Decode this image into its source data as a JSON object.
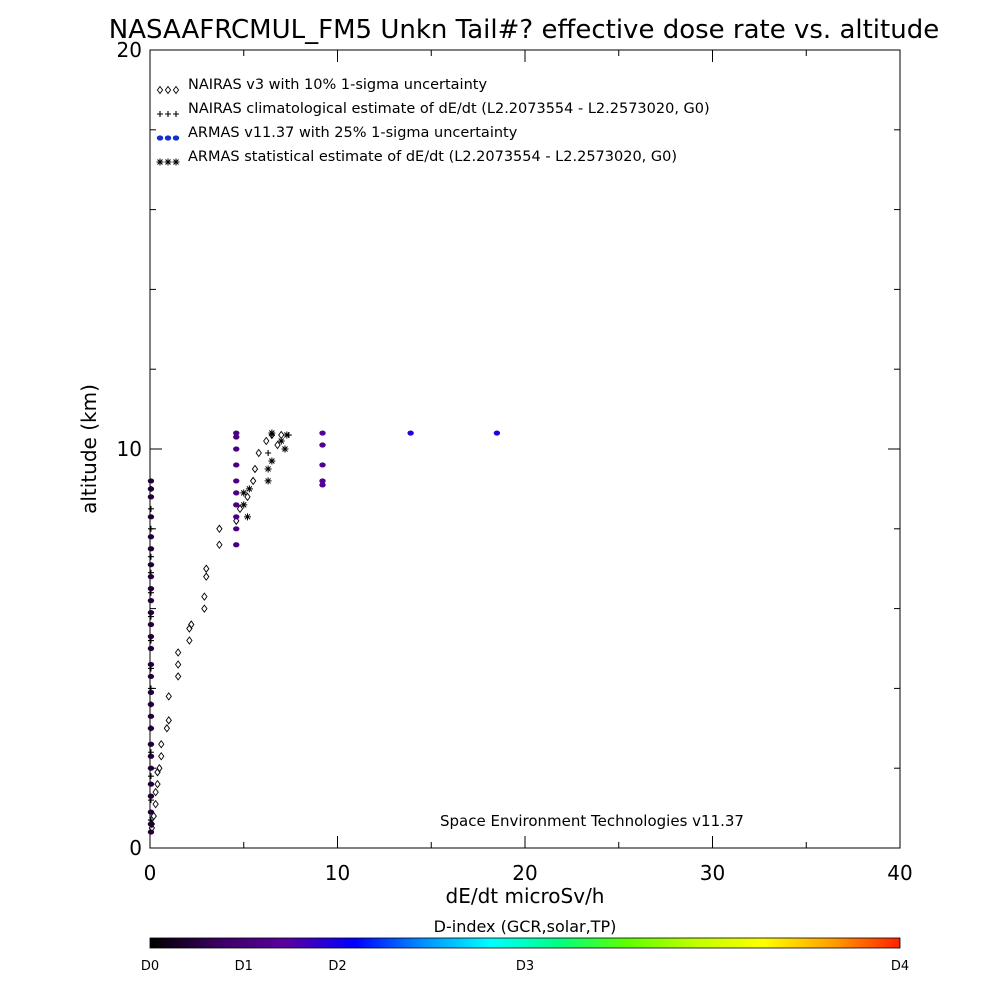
{
  "chart_data": {
    "type": "scatter",
    "title": "NASAAFRCMUL_FM5 Unkn Tail#? effective dose rate vs. altitude",
    "xlabel": "dE/dt microSv/h",
    "ylabel": "altitude (km)",
    "xlim": [
      0,
      40
    ],
    "ylim": [
      0,
      20
    ],
    "x_ticks": [
      "0",
      "10",
      "20",
      "30",
      "40"
    ],
    "y_ticks": [
      "0",
      "10",
      "20"
    ],
    "credit": "Space Environment Technologies v11.37",
    "legend_position": "top-left",
    "legend": [
      {
        "symbol": "diamond",
        "symbol_text": "◇◇◇",
        "label": "NAIRAS v3 with 10% 1-sigma uncertainty"
      },
      {
        "symbol": "plus",
        "symbol_text": "+++",
        "label": "NAIRAS climatological estimate of dE/dt (L2.2073554 - L2.2573020, G0)"
      },
      {
        "symbol": "dot",
        "symbol_text": "●●●",
        "label": "ARMAS v11.37 with 25% 1-sigma uncertainty"
      },
      {
        "symbol": "asterisk",
        "symbol_text": "***",
        "label": "ARMAS statistical estimate of dE/dt (L2.2073554 - L2.2573020, G0)"
      }
    ],
    "colorbar": {
      "title": "D-index (GCR,solar,TP)",
      "labels": [
        "D0",
        "D1",
        "D2",
        "D3",
        "D4"
      ],
      "label_positions": [
        0,
        0.125,
        0.25,
        0.5,
        1.0
      ],
      "stops": [
        "#000000",
        "#3a0060",
        "#5a00a0",
        "#0000ff",
        "#0090ff",
        "#00ffff",
        "#00ff80",
        "#60ff00",
        "#c0ff00",
        "#ffff00",
        "#ffa000",
        "#ff2000"
      ]
    },
    "series": [
      {
        "name": "NAIRAS v3 with 10% 1-sigma uncertainty",
        "marker": "diamond",
        "color": "#000000",
        "points": [
          [
            0.1,
            0.5
          ],
          [
            0.1,
            0.6
          ],
          [
            0.2,
            0.8
          ],
          [
            0.3,
            1.1
          ],
          [
            0.3,
            1.4
          ],
          [
            0.4,
            1.6
          ],
          [
            0.4,
            1.9
          ],
          [
            0.5,
            2.0
          ],
          [
            0.6,
            2.3
          ],
          [
            0.6,
            2.6
          ],
          [
            0.9,
            3.0
          ],
          [
            1.0,
            3.2
          ],
          [
            1.0,
            3.8
          ],
          [
            1.5,
            4.3
          ],
          [
            1.5,
            4.6
          ],
          [
            1.5,
            4.9
          ],
          [
            2.1,
            5.2
          ],
          [
            2.1,
            5.5
          ],
          [
            2.2,
            5.6
          ],
          [
            2.9,
            6.0
          ],
          [
            2.9,
            6.3
          ],
          [
            3.0,
            6.8
          ],
          [
            3.0,
            7.0
          ],
          [
            3.7,
            7.6
          ],
          [
            3.7,
            8.0
          ],
          [
            4.6,
            8.2
          ],
          [
            4.8,
            8.5
          ],
          [
            5.2,
            8.8
          ],
          [
            5.5,
            9.2
          ],
          [
            5.6,
            9.5
          ],
          [
            5.8,
            9.9
          ],
          [
            6.2,
            10.2
          ],
          [
            6.5,
            10.35
          ],
          [
            6.8,
            10.1
          ],
          [
            7.0,
            10.35
          ]
        ]
      },
      {
        "name": "NAIRAS climatological estimate of dE/dt (L2.2073554 - L2.2573020, G0)",
        "marker": "plus",
        "color": "#000000",
        "points": [
          [
            0.05,
            0.7
          ],
          [
            0.05,
            1.2
          ],
          [
            0.05,
            1.8
          ],
          [
            0.05,
            2.4
          ],
          [
            0.05,
            3.0
          ],
          [
            0.05,
            3.6
          ],
          [
            0.05,
            4.0
          ],
          [
            0.05,
            4.5
          ],
          [
            0.05,
            5.2
          ],
          [
            0.05,
            5.8
          ],
          [
            0.05,
            6.4
          ],
          [
            0.05,
            6.9
          ],
          [
            0.05,
            7.3
          ],
          [
            0.05,
            8.0
          ],
          [
            0.05,
            8.5
          ],
          [
            0.05,
            9.0
          ],
          [
            6.3,
            9.9
          ],
          [
            6.5,
            10.35
          ],
          [
            7.4,
            10.35
          ]
        ]
      },
      {
        "name": "ARMAS v11.37 with 25% 1-sigma uncertainty",
        "marker": "dot",
        "color_by_dindex": true,
        "points": [
          [
            0.05,
            0.4,
            0.05
          ],
          [
            0.05,
            0.6,
            0.05
          ],
          [
            0.05,
            0.9,
            0.05
          ],
          [
            0.05,
            1.3,
            0.05
          ],
          [
            0.05,
            1.6,
            0.05
          ],
          [
            0.05,
            2.0,
            0.05
          ],
          [
            0.05,
            2.3,
            0.05
          ],
          [
            0.05,
            2.6,
            0.05
          ],
          [
            0.05,
            3.0,
            0.05
          ],
          [
            0.05,
            3.3,
            0.05
          ],
          [
            0.05,
            3.6,
            0.05
          ],
          [
            0.05,
            3.9,
            0.05
          ],
          [
            0.05,
            4.3,
            0.05
          ],
          [
            0.05,
            4.6,
            0.05
          ],
          [
            0.05,
            5.0,
            0.05
          ],
          [
            0.05,
            5.3,
            0.05
          ],
          [
            0.05,
            5.6,
            0.05
          ],
          [
            0.05,
            5.9,
            0.05
          ],
          [
            0.05,
            6.2,
            0.05
          ],
          [
            0.05,
            6.5,
            0.05
          ],
          [
            0.05,
            6.8,
            0.05
          ],
          [
            0.05,
            7.1,
            0.05
          ],
          [
            0.05,
            7.5,
            0.05
          ],
          [
            0.05,
            7.8,
            0.05
          ],
          [
            0.05,
            8.3,
            0.05
          ],
          [
            0.05,
            8.8,
            0.05
          ],
          [
            0.05,
            9.0,
            0.05
          ],
          [
            0.05,
            9.2,
            0.05
          ],
          [
            4.6,
            7.6,
            0.14
          ],
          [
            4.6,
            8.0,
            0.14
          ],
          [
            4.6,
            8.3,
            0.14
          ],
          [
            4.6,
            8.6,
            0.14
          ],
          [
            4.6,
            8.9,
            0.14
          ],
          [
            4.6,
            9.2,
            0.14
          ],
          [
            4.6,
            9.6,
            0.14
          ],
          [
            4.6,
            10.0,
            0.14
          ],
          [
            4.6,
            10.3,
            0.14
          ],
          [
            4.6,
            10.4,
            0.14
          ],
          [
            9.2,
            9.1,
            0.16
          ],
          [
            9.2,
            9.2,
            0.16
          ],
          [
            9.2,
            9.6,
            0.16
          ],
          [
            9.2,
            10.1,
            0.16
          ],
          [
            9.2,
            10.4,
            0.16
          ],
          [
            13.9,
            10.4,
            0.24
          ],
          [
            18.5,
            10.4,
            0.24
          ]
        ]
      },
      {
        "name": "ARMAS statistical estimate of dE/dt (L2.2073554 - L2.2573020, G0)",
        "marker": "asterisk",
        "color": "#000000",
        "points": [
          [
            5.2,
            8.3
          ],
          [
            5.0,
            8.6
          ],
          [
            5.0,
            8.9
          ],
          [
            5.3,
            9.0
          ],
          [
            6.3,
            9.2
          ],
          [
            6.3,
            9.5
          ],
          [
            6.5,
            9.7
          ],
          [
            7.2,
            10.0
          ],
          [
            7.0,
            10.2
          ],
          [
            7.3,
            10.35
          ],
          [
            6.5,
            10.4
          ]
        ]
      }
    ]
  }
}
